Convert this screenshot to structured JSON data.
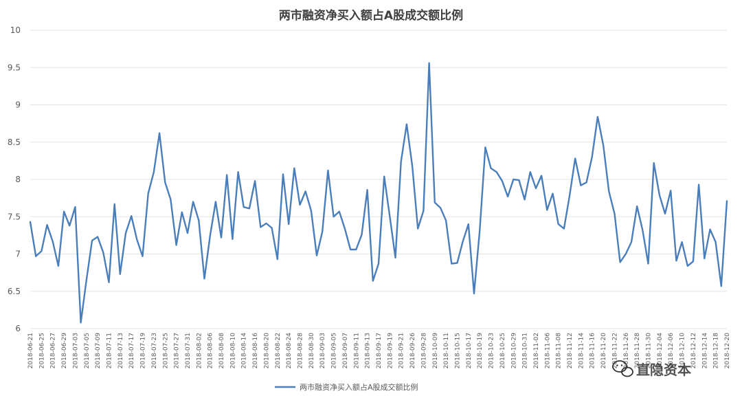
{
  "chart_data": {
    "type": "line",
    "title": "两市融资净买入额占A股成交额比例",
    "xlabel": "",
    "ylabel": "",
    "ylim": [
      6,
      10
    ],
    "yticks": [
      "6",
      "6.5",
      "7",
      "7.5",
      "8",
      "8.5",
      "9",
      "9.5",
      "10"
    ],
    "grid": true,
    "legend_position": "bottom",
    "x": [
      "2018-06-21",
      "2018-06-22",
      "2018-06-25",
      "2018-06-26",
      "2018-06-27",
      "2018-06-28",
      "2018-06-29",
      "2018-07-02",
      "2018-07-03",
      "2018-07-04",
      "2018-07-05",
      "2018-07-06",
      "2018-07-09",
      "2018-07-10",
      "2018-07-11",
      "2018-07-12",
      "2018-07-13",
      "2018-07-16",
      "2018-07-17",
      "2018-07-18",
      "2018-07-19",
      "2018-07-20",
      "2018-07-23",
      "2018-07-24",
      "2018-07-25",
      "2018-07-26",
      "2018-07-27",
      "2018-07-30",
      "2018-07-31",
      "2018-08-01",
      "2018-08-02",
      "2018-08-03",
      "2018-08-06",
      "2018-08-07",
      "2018-08-08",
      "2018-08-09",
      "2018-08-10",
      "2018-08-13",
      "2018-08-14",
      "2018-08-15",
      "2018-08-16",
      "2018-08-17",
      "2018-08-20",
      "2018-08-21",
      "2018-08-22",
      "2018-08-23",
      "2018-08-24",
      "2018-08-27",
      "2018-08-28",
      "2018-08-29",
      "2018-08-30",
      "2018-08-31",
      "2018-09-03",
      "2018-09-04",
      "2018-09-05",
      "2018-09-06",
      "2018-09-07",
      "2018-09-10",
      "2018-09-11",
      "2018-09-12",
      "2018-09-13",
      "2018-09-14",
      "2018-09-17",
      "2018-09-18",
      "2018-09-19",
      "2018-09-20",
      "2018-09-21",
      "2018-09-25",
      "2018-09-26",
      "2018-09-27",
      "2018-09-28",
      "2018-10-08",
      "2018-10-09",
      "2018-10-10",
      "2018-10-11",
      "2018-10-12",
      "2018-10-15",
      "2018-10-16",
      "2018-10-17",
      "2018-10-18",
      "2018-10-19",
      "2018-10-22",
      "2018-10-23",
      "2018-10-24",
      "2018-10-25",
      "2018-10-26",
      "2018-10-29",
      "2018-10-30",
      "2018-10-31",
      "2018-11-01",
      "2018-11-02",
      "2018-11-05",
      "2018-11-06",
      "2018-11-07",
      "2018-11-08",
      "2018-11-09",
      "2018-11-12",
      "2018-11-13",
      "2018-11-14",
      "2018-11-15",
      "2018-11-16",
      "2018-11-19",
      "2018-11-20",
      "2018-11-21",
      "2018-11-22",
      "2018-11-23",
      "2018-11-26",
      "2018-11-27",
      "2018-11-28",
      "2018-11-29",
      "2018-11-30",
      "2018-12-03",
      "2018-12-04",
      "2018-12-05",
      "2018-12-06",
      "2018-12-07",
      "2018-12-10",
      "2018-12-11",
      "2018-12-12",
      "2018-12-13",
      "2018-12-14",
      "2018-12-17",
      "2018-12-18",
      "2018-12-19",
      "2018-12-20"
    ],
    "x_tick_labels": [
      "2018-06-21",
      "2018-06-25",
      "2018-06-27",
      "2018-06-29",
      "2018-07-03",
      "2018-07-05",
      "2018-07-09",
      "2018-07-11",
      "2018-07-13",
      "2018-07-17",
      "2018-07-19",
      "2018-07-23",
      "2018-07-25",
      "2018-07-27",
      "2018-07-31",
      "2018-08-02",
      "2018-08-06",
      "2018-08-08",
      "2018-08-10",
      "2018-08-14",
      "2018-08-16",
      "2018-08-20",
      "2018-08-22",
      "2018-08-24",
      "2018-08-28",
      "2018-08-30",
      "2018-09-03",
      "2018-09-05",
      "2018-09-07",
      "2018-09-11",
      "2018-09-13",
      "2018-09-17",
      "2018-09-19",
      "2018-09-21",
      "2018-09-26",
      "2018-09-28",
      "2018-10-09",
      "2018-10-11",
      "2018-10-15",
      "2018-10-17",
      "2018-10-19",
      "2018-10-23",
      "2018-10-25",
      "2018-10-29",
      "2018-10-31",
      "2018-11-02",
      "2018-11-06",
      "2018-11-08",
      "2018-11-12",
      "2018-11-14",
      "2018-11-16",
      "2018-11-20",
      "2018-11-22",
      "2018-11-26",
      "2018-11-28",
      "2018-11-30",
      "2018-12-04",
      "2018-12-06",
      "2018-12-10",
      "2018-12-12",
      "2018-12-14",
      "2018-12-18",
      "2018-12-20"
    ],
    "series": [
      {
        "name": "两市融资净买入额占A股成交额比例",
        "color": "#4a7ebb",
        "values": [
          7.43,
          6.97,
          7.04,
          7.39,
          7.17,
          6.84,
          7.57,
          7.38,
          7.63,
          6.08,
          6.65,
          7.18,
          7.23,
          7.02,
          6.62,
          7.67,
          6.73,
          7.28,
          7.51,
          7.19,
          6.97,
          7.81,
          8.1,
          8.62,
          7.96,
          7.73,
          7.12,
          7.56,
          7.28,
          7.7,
          7.45,
          6.67,
          7.24,
          7.7,
          7.22,
          8.06,
          7.2,
          8.1,
          7.63,
          7.61,
          7.98,
          7.36,
          7.41,
          7.35,
          6.93,
          8.07,
          7.4,
          8.15,
          7.66,
          7.84,
          7.58,
          6.98,
          7.3,
          8.12,
          7.5,
          7.57,
          7.34,
          7.06,
          7.06,
          7.26,
          7.86,
          6.64,
          6.87,
          8.04,
          7.5,
          6.95,
          8.24,
          8.74,
          8.18,
          7.34,
          7.58,
          9.56,
          7.69,
          7.62,
          7.45,
          6.87,
          6.88,
          7.17,
          7.4,
          6.47,
          7.31,
          8.43,
          8.15,
          8.1,
          7.98,
          7.77,
          8.0,
          7.99,
          7.73,
          8.1,
          7.88,
          8.05,
          7.59,
          7.81,
          7.4,
          7.34,
          7.78,
          8.28,
          7.92,
          7.96,
          8.3,
          8.84,
          8.46,
          7.84,
          7.54,
          6.89,
          7.0,
          7.16,
          7.64,
          7.32,
          6.87,
          8.22,
          7.79,
          7.54,
          7.85,
          6.91,
          7.16,
          6.84,
          6.9,
          7.93,
          6.94,
          7.33,
          7.16,
          6.57,
          7.71
        ]
      }
    ]
  },
  "watermark": {
    "icon": "wechat-icon",
    "text": "直隐资本"
  }
}
